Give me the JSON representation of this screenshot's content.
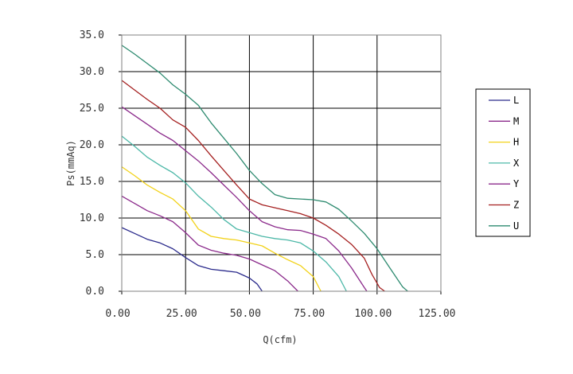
{
  "chart_data": {
    "type": "line",
    "title": "",
    "xlabel": "Q(cfm)",
    "ylabel": "Ps(mmAq)",
    "xlim": [
      0,
      125
    ],
    "ylim": [
      0,
      35
    ],
    "xticks": [
      "0.00",
      "25.00",
      "50.00",
      "75.00",
      "100.00",
      "125.00"
    ],
    "yticks": [
      "0.0",
      "5.0",
      "10.0",
      "15.0",
      "20.0",
      "25.0",
      "30.0",
      "35.0"
    ],
    "grid": true,
    "legend_position": "right",
    "series": [
      {
        "name": "L",
        "color": "#2b2b8c",
        "points": [
          [
            0,
            8.7
          ],
          [
            5,
            7.9
          ],
          [
            10,
            7.1
          ],
          [
            15,
            6.6
          ],
          [
            20,
            5.8
          ],
          [
            25,
            4.6
          ],
          [
            30,
            3.5
          ],
          [
            35,
            3.0
          ],
          [
            40,
            2.8
          ],
          [
            45,
            2.6
          ],
          [
            50,
            1.8
          ],
          [
            53,
            1.0
          ],
          [
            55,
            0
          ]
        ]
      },
      {
        "name": "M",
        "color": "#8b2a8b",
        "points": [
          [
            0,
            13.0
          ],
          [
            5,
            12.0
          ],
          [
            10,
            11.0
          ],
          [
            15,
            10.3
          ],
          [
            20,
            9.5
          ],
          [
            25,
            8.0
          ],
          [
            30,
            6.3
          ],
          [
            35,
            5.6
          ],
          [
            40,
            5.2
          ],
          [
            45,
            4.9
          ],
          [
            50,
            4.4
          ],
          [
            55,
            3.6
          ],
          [
            60,
            2.8
          ],
          [
            65,
            1.4
          ],
          [
            69,
            0
          ]
        ]
      },
      {
        "name": "H",
        "color": "#f2d21a",
        "points": [
          [
            0,
            17.0
          ],
          [
            5,
            15.8
          ],
          [
            10,
            14.5
          ],
          [
            15,
            13.5
          ],
          [
            20,
            12.6
          ],
          [
            25,
            11.0
          ],
          [
            30,
            8.5
          ],
          [
            35,
            7.5
          ],
          [
            40,
            7.2
          ],
          [
            45,
            7.0
          ],
          [
            50,
            6.6
          ],
          [
            55,
            6.2
          ],
          [
            60,
            5.2
          ],
          [
            65,
            4.3
          ],
          [
            70,
            3.5
          ],
          [
            75,
            2.0
          ],
          [
            78,
            0
          ]
        ]
      },
      {
        "name": "X",
        "color": "#4db8a8",
        "points": [
          [
            0,
            21.2
          ],
          [
            5,
            19.8
          ],
          [
            10,
            18.3
          ],
          [
            15,
            17.2
          ],
          [
            20,
            16.2
          ],
          [
            25,
            14.8
          ],
          [
            30,
            13.0
          ],
          [
            35,
            11.5
          ],
          [
            40,
            9.8
          ],
          [
            45,
            8.5
          ],
          [
            50,
            8.0
          ],
          [
            55,
            7.5
          ],
          [
            60,
            7.2
          ],
          [
            65,
            7.0
          ],
          [
            70,
            6.6
          ],
          [
            75,
            5.5
          ],
          [
            80,
            4.0
          ],
          [
            85,
            2.0
          ],
          [
            88,
            0
          ]
        ]
      },
      {
        "name": "Y",
        "color": "#8b2a8b",
        "points": [
          [
            0,
            25.2
          ],
          [
            5,
            24.0
          ],
          [
            10,
            22.8
          ],
          [
            15,
            21.6
          ],
          [
            20,
            20.6
          ],
          [
            25,
            19.2
          ],
          [
            30,
            17.8
          ],
          [
            35,
            16.2
          ],
          [
            40,
            14.5
          ],
          [
            45,
            12.8
          ],
          [
            50,
            11.0
          ],
          [
            55,
            9.5
          ],
          [
            60,
            8.8
          ],
          [
            65,
            8.4
          ],
          [
            70,
            8.3
          ],
          [
            75,
            7.8
          ],
          [
            80,
            7.2
          ],
          [
            85,
            5.5
          ],
          [
            90,
            3.2
          ],
          [
            95,
            0.5
          ],
          [
            96,
            0
          ]
        ]
      },
      {
        "name": "Z",
        "color": "#a52020",
        "points": [
          [
            0,
            28.8
          ],
          [
            5,
            27.5
          ],
          [
            10,
            26.2
          ],
          [
            15,
            25.0
          ],
          [
            20,
            23.4
          ],
          [
            25,
            22.4
          ],
          [
            30,
            20.6
          ],
          [
            35,
            18.5
          ],
          [
            40,
            16.5
          ],
          [
            45,
            14.5
          ],
          [
            50,
            12.6
          ],
          [
            55,
            11.8
          ],
          [
            60,
            11.4
          ],
          [
            65,
            11.0
          ],
          [
            70,
            10.6
          ],
          [
            75,
            10.0
          ],
          [
            80,
            9.0
          ],
          [
            85,
            7.8
          ],
          [
            90,
            6.4
          ],
          [
            95,
            4.5
          ],
          [
            98,
            2.3
          ],
          [
            101,
            0.5
          ],
          [
            103,
            0
          ]
        ]
      },
      {
        "name": "U",
        "color": "#2e8b70",
        "points": [
          [
            0,
            33.6
          ],
          [
            5,
            32.4
          ],
          [
            10,
            31.1
          ],
          [
            15,
            29.8
          ],
          [
            20,
            28.2
          ],
          [
            25,
            26.9
          ],
          [
            30,
            25.4
          ],
          [
            35,
            23.0
          ],
          [
            40,
            20.9
          ],
          [
            45,
            18.8
          ],
          [
            50,
            16.5
          ],
          [
            55,
            14.7
          ],
          [
            60,
            13.2
          ],
          [
            65,
            12.7
          ],
          [
            70,
            12.6
          ],
          [
            75,
            12.5
          ],
          [
            80,
            12.2
          ],
          [
            85,
            11.2
          ],
          [
            90,
            9.6
          ],
          [
            95,
            7.9
          ],
          [
            100,
            5.8
          ],
          [
            105,
            3.2
          ],
          [
            110,
            0.6
          ],
          [
            112,
            0
          ]
        ]
      }
    ]
  }
}
